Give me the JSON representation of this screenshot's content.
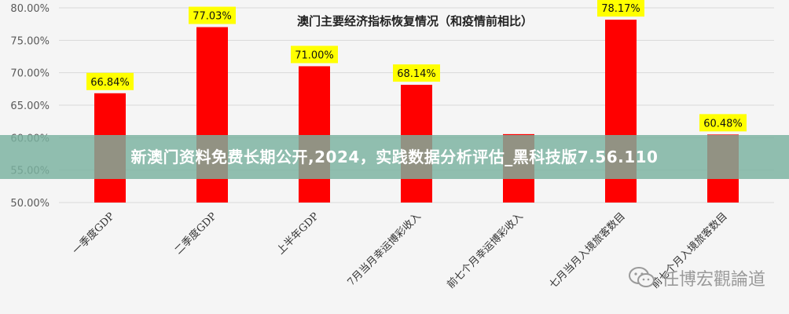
{
  "banner": {
    "text": "新澳门资料免费长期公开,2024，实践数据分析评估_黑科技版7.56.110"
  },
  "watermark": {
    "text": "任博宏觀論道",
    "icon": "wechat-icon"
  },
  "colors": {
    "bar": "#ff0000",
    "label_bg": "#ffff00",
    "grid": "#d9d9d9",
    "axis_text": "#595959",
    "banner": "#7ab2a0"
  },
  "chart_data": {
    "type": "bar",
    "title": "澳门主要经济指标恢复情况（和疫情前相比）",
    "xlabel": "",
    "ylabel": "",
    "ylim": [
      50,
      80
    ],
    "yticks": [
      "50.00%",
      "55.00%",
      "60.00%",
      "65.00%",
      "70.00%",
      "75.00%",
      "80.00%"
    ],
    "categories": [
      "一季度GDP",
      "二季度GDP",
      "上半年GDP",
      "7月当月幸运博彩收入",
      "前七个月幸运博彩收入",
      "七月当月入境旅客数目",
      "前七个月入境旅客数目"
    ],
    "values": [
      66.84,
      77.03,
      71.0,
      68.14,
      60.54,
      78.17,
      60.48
    ],
    "labels": [
      "66.84%",
      "77.03%",
      "71.00%",
      "68.14%",
      "",
      "78.17%",
      "60.48%"
    ],
    "grid": true
  }
}
